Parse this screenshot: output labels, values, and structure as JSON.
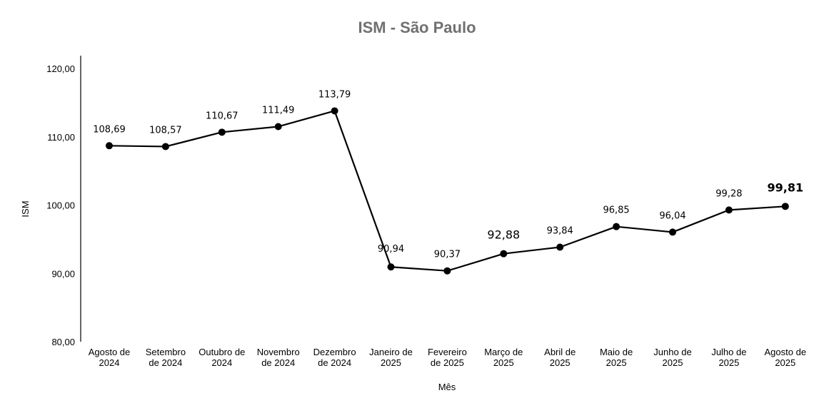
{
  "chart_data": {
    "type": "line",
    "title": "ISM - São Paulo",
    "xlabel": "Mês",
    "ylabel": "ISM",
    "ylim": [
      80,
      120
    ],
    "yticks": [
      "80,00",
      "90,00",
      "100,00",
      "110,00",
      "120,00"
    ],
    "ytick_values": [
      80,
      90,
      100,
      110,
      120
    ],
    "categories": [
      [
        "Agosto de",
        "2024"
      ],
      [
        "Setembro",
        "de 2024"
      ],
      [
        "Outubro de",
        "2024"
      ],
      [
        "Novembro",
        "de 2024"
      ],
      [
        "Dezembro",
        "de 2024"
      ],
      [
        "Janeiro de",
        "2025"
      ],
      [
        "Fevereiro",
        "de 2025"
      ],
      [
        "Março de",
        "2025"
      ],
      [
        "Abril de",
        "2025"
      ],
      [
        "Maio de",
        "2025"
      ],
      [
        "Junho de",
        "2025"
      ],
      [
        "Julho de",
        "2025"
      ],
      [
        "Agosto de",
        "2025"
      ]
    ],
    "values": [
      108.69,
      108.57,
      110.67,
      111.49,
      113.79,
      90.94,
      90.37,
      92.88,
      93.84,
      96.85,
      96.04,
      99.28,
      99.81
    ],
    "labels": [
      "108,69",
      "108,57",
      "110,67",
      "111,49",
      "113,79",
      "90,94",
      "90,37",
      "92,88",
      "93,84",
      "96,85",
      "96,04",
      "99,28",
      "99,81"
    ],
    "label_style": [
      "",
      "",
      "",
      "",
      "",
      "",
      "",
      "emph",
      "",
      "",
      "",
      "",
      "bold"
    ],
    "line_color": "#000000",
    "marker_color": "#000000",
    "grid": false,
    "legend": "none"
  }
}
